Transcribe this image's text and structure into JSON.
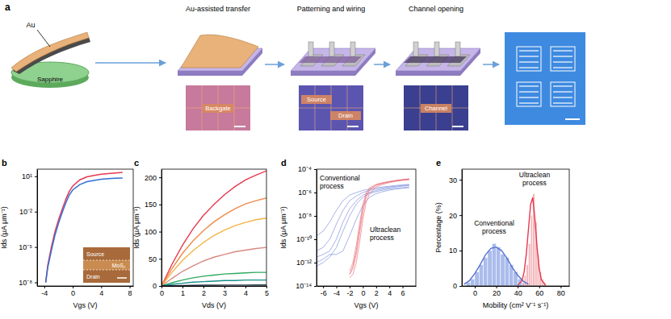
{
  "diagram": {
    "label": "a",
    "source": {
      "film": "Au",
      "substrate": "Sapphire"
    },
    "steps": [
      {
        "title": "Au-assisted transfer",
        "labels": [
          "Backgate"
        ]
      },
      {
        "title": "Patterning and wiring",
        "labels": [
          "Source",
          "Drain"
        ]
      },
      {
        "title": "Channel opening",
        "labels": [
          "Channel"
        ]
      }
    ]
  },
  "chart_data": [
    {
      "type": "line",
      "title": "b",
      "x_label": "Vgs (V)",
      "y_label": "Ids (μA μm⁻¹)",
      "log": "y",
      "xlim": [
        -5,
        8.5
      ],
      "xticks": [
        -4,
        0,
        4,
        8
      ],
      "ylim": [
        5e-09,
        40
      ],
      "yticks": [
        {
          "value": 10,
          "label": "10¹"
        },
        {
          "value": 0.01,
          "label": "10⁻²"
        },
        {
          "value": 1e-05,
          "label": "10⁻⁵"
        },
        {
          "value": 1e-08,
          "label": "10⁻⁸"
        }
      ],
      "x": [
        -3.8,
        -3.5,
        -3,
        -2.5,
        -2,
        -1.5,
        -1,
        -0.5,
        0,
        1,
        2,
        3,
        4,
        5,
        6,
        7
      ],
      "series": [
        {
          "color": "#e8384f",
          "values": [
            1e-08,
            3e-07,
            1e-05,
            0.0002,
            0.002,
            0.015,
            0.1,
            0.5,
            1.5,
            5,
            9,
            12,
            15,
            17,
            19,
            21
          ]
        },
        {
          "color": "#2f6fd6",
          "values": [
            1e-08,
            2e-07,
            5e-06,
            0.0001,
            0.001,
            0.008,
            0.05,
            0.25,
            0.7,
            2,
            3.5,
            4.5,
            5.5,
            6.2,
            6.8,
            7.2
          ]
        }
      ],
      "inset_labels": [
        "Source",
        "MoS₂",
        "Drain"
      ]
    },
    {
      "type": "line",
      "title": "c",
      "x_label": "Vds (V)",
      "y_label": "Ids (μA μm⁻¹)",
      "xlim": [
        0,
        5
      ],
      "xticks": [
        0,
        1,
        2,
        3,
        4,
        5
      ],
      "ylim": [
        0,
        215
      ],
      "yticks": [
        0,
        50,
        100,
        150,
        200
      ],
      "x": [
        0,
        0.5,
        1,
        1.5,
        2,
        2.5,
        3,
        3.5,
        4,
        4.5,
        5
      ],
      "series": [
        {
          "color": "#e8384f",
          "values": [
            0,
            40,
            75,
            105,
            130,
            150,
            168,
            183,
            195,
            204,
            212
          ]
        },
        {
          "color": "#f08a4b",
          "values": [
            0,
            32,
            60,
            83,
            102,
            118,
            131,
            142,
            151,
            157,
            162
          ]
        },
        {
          "color": "#f2b443",
          "values": [
            0,
            25,
            47,
            65,
            80,
            93,
            103,
            111,
            117,
            122,
            125
          ]
        },
        {
          "color": "#d98880",
          "values": [
            0,
            14,
            27,
            37,
            46,
            53,
            58,
            63,
            66,
            69,
            71
          ]
        },
        {
          "color": "#2eaa5e",
          "values": [
            0,
            6,
            11,
            15,
            18,
            20,
            22,
            23,
            24,
            25,
            25
          ]
        },
        {
          "color": "#1a8f8a",
          "values": [
            0,
            3,
            5,
            7,
            8,
            9,
            10,
            10,
            11,
            11,
            11
          ]
        },
        {
          "color": "#2c3e50",
          "values": [
            0,
            0.5,
            1,
            1.2,
            1.4,
            1.5,
            1.6,
            1.7,
            1.7,
            1.8,
            1.8
          ]
        }
      ]
    },
    {
      "type": "line",
      "title": "d",
      "x_label": "Vgs (V)",
      "y_label": "Ids (μA μm⁻¹)",
      "log": "y",
      "xlim": [
        -7,
        8
      ],
      "xticks": [
        -6,
        -4,
        -2,
        0,
        2,
        4,
        6
      ],
      "ylim": [
        1e-14,
        0.0001
      ],
      "yticks": [
        {
          "value": 0.0001,
          "label": "10⁻⁴"
        },
        {
          "value": 1e-06,
          "label": "10⁻⁶"
        },
        {
          "value": 1e-08,
          "label": "10⁻⁸"
        },
        {
          "value": 1e-10,
          "label": "10⁻¹⁰"
        },
        {
          "value": 1e-12,
          "label": "10⁻¹²"
        },
        {
          "value": 1e-14,
          "label": "10⁻¹⁴"
        }
      ],
      "series": [
        {
          "color": "#6a7fd6",
          "x": [
            -7,
            -6,
            -5,
            -4,
            -3,
            -2,
            -1,
            0,
            1,
            2,
            3,
            4,
            5,
            6,
            7
          ],
          "values": [
            3e-12,
            5e-12,
            1e-11,
            1e-10,
            3e-09,
            4e-08,
            2e-07,
            6e-07,
            1e-06,
            1.5e-06,
            2e-06,
            2.5e-06,
            3e-06,
            3.5e-06,
            4e-06
          ]
        },
        {
          "color": "#6a7fd6",
          "x": [
            -7,
            -6,
            -5,
            -4,
            -3,
            -2,
            -1,
            0,
            1,
            2,
            3,
            4,
            5,
            6,
            7
          ],
          "values": [
            1e-11,
            2e-11,
            1e-10,
            2e-09,
            3e-08,
            2e-07,
            5e-07,
            1e-06,
            1.5e-06,
            2e-06,
            2.5e-06,
            3e-06,
            3.5e-06,
            4e-06,
            4.5e-06
          ]
        },
        {
          "color": "#6a7fd6",
          "x": [
            -7,
            -6,
            -5,
            -4,
            -3,
            -2,
            -1,
            0,
            1,
            2,
            3,
            4,
            5,
            6,
            7
          ],
          "values": [
            5e-13,
            1e-12,
            3e-12,
            2e-11,
            5e-10,
            1e-08,
            1e-07,
            4e-07,
            8e-07,
            1.2e-06,
            1.6e-06,
            2e-06,
            2.3e-06,
            2.6e-06,
            3e-06
          ]
        },
        {
          "color": "#6a7fd6",
          "x": [
            -7,
            -6,
            -5,
            -4,
            -3,
            -2,
            -1,
            0,
            1,
            2,
            3,
            4,
            5,
            6,
            7
          ],
          "values": [
            2e-10,
            5e-10,
            3e-09,
            3e-08,
            2e-07,
            6e-07,
            1e-06,
            1.5e-06,
            2e-06,
            2.5e-06,
            3e-06,
            3.5e-06,
            4e-06,
            4.5e-06,
            5e-06
          ]
        },
        {
          "color": "#6a7fd6",
          "x": [
            -7,
            -6,
            -5,
            -4,
            -3,
            -2,
            -1,
            0,
            1,
            2,
            3,
            4,
            5,
            6,
            7
          ],
          "values": [
            1e-12,
            2e-12,
            5e-12,
            5e-12,
            1e-11,
            2e-10,
            5e-09,
            8e-08,
            4e-07,
            8e-07,
            1.2e-06,
            1.6e-06,
            2e-06,
            2.3e-06,
            2.6e-06
          ]
        },
        {
          "color": "#e8606a",
          "x": [
            -2,
            -1.5,
            -1,
            -0.5,
            0,
            0.5,
            1,
            2,
            3,
            4,
            5,
            6,
            7
          ],
          "values": [
            1e-13,
            3e-13,
            5e-12,
            3e-10,
            2e-08,
            4e-07,
            1.5e-06,
            4e-06,
            6e-06,
            8e-06,
            1e-05,
            1.2e-05,
            1.4e-05
          ]
        },
        {
          "color": "#e8606a",
          "x": [
            -2,
            -1.5,
            -1,
            -0.5,
            0,
            0.5,
            1,
            2,
            3,
            4,
            5,
            6,
            7
          ],
          "values": [
            2e-13,
            1e-12,
            3e-11,
            2e-09,
            1e-07,
            1e-06,
            2.5e-06,
            5e-06,
            7e-06,
            9e-06,
            1.1e-05,
            1.3e-05,
            1.5e-05
          ]
        },
        {
          "color": "#e8606a",
          "x": [
            -2,
            -1.5,
            -1,
            -0.5,
            0,
            0.5,
            1,
            2,
            3,
            4,
            5,
            6,
            7
          ],
          "values": [
            5e-14,
            1e-13,
            1e-12,
            5e-11,
            5e-09,
            1.5e-07,
            8e-07,
            3e-06,
            5e-06,
            7e-06,
            9e-06,
            1.1e-05,
            1.2e-05
          ]
        },
        {
          "color": "#e8606a",
          "x": [
            -2,
            -1.5,
            -1,
            -0.5,
            0,
            0.5,
            1,
            2,
            3,
            4,
            5,
            6,
            7
          ],
          "values": [
            1e-13,
            5e-13,
            1e-11,
            8e-10,
            5e-08,
            6e-07,
            2e-06,
            4.5e-06,
            6.5e-06,
            8.5e-06,
            1.05e-05,
            1.25e-05,
            1.45e-05
          ]
        }
      ],
      "annotations": [
        {
          "text": [
            "Conventional",
            "process"
          ]
        },
        {
          "text": [
            "Ultraclean",
            "process"
          ]
        }
      ]
    },
    {
      "type": "histogram",
      "title": "e",
      "x_label": "Mobility (cm² V⁻¹ s⁻¹)",
      "y_label": "Percentage (%)",
      "xlim": [
        -12,
        88
      ],
      "xticks": [
        0,
        20,
        40,
        60,
        80
      ],
      "ylim": [
        0,
        33
      ],
      "yticks": [
        0,
        10,
        20,
        30
      ],
      "series": [
        {
          "type": "histogram",
          "color": "#8ea6e6",
          "bins": [
            -8,
            -4,
            0,
            4,
            8,
            12,
            16,
            20,
            24,
            28,
            32,
            36,
            40,
            44,
            48
          ],
          "values": [
            1,
            2,
            4,
            6,
            8,
            10,
            12,
            11,
            9,
            8,
            6,
            4,
            2,
            1
          ]
        },
        {
          "type": "histogram",
          "color": "#f0a0a6",
          "bins": [
            44,
            46,
            48,
            50,
            52,
            54,
            56,
            58,
            60,
            62,
            64,
            66
          ],
          "values": [
            1,
            3,
            6,
            12,
            20,
            26,
            18,
            9,
            4,
            2,
            1
          ]
        },
        {
          "type": "line",
          "color": "#5570d0",
          "x": [
            -10,
            -5,
            0,
            5,
            10,
            15,
            20,
            25,
            30,
            35,
            40,
            45,
            50
          ],
          "values": [
            0.5,
            1.5,
            3.5,
            6,
            8.8,
            10.6,
            11,
            10,
            7.8,
            5.2,
            3,
            1.4,
            0.5
          ]
        },
        {
          "type": "line",
          "color": "#e8384f",
          "x": [
            40,
            44,
            46,
            48,
            50,
            52,
            54,
            56,
            58,
            60,
            62,
            66
          ],
          "values": [
            0.2,
            1.5,
            4,
            9,
            16,
            23,
            25,
            19,
            11,
            5,
            1.8,
            0.2
          ]
        }
      ],
      "annotations": [
        {
          "text": [
            "Conventional",
            "process"
          ]
        },
        {
          "text": [
            "Ultraclean",
            "process"
          ]
        }
      ]
    }
  ]
}
